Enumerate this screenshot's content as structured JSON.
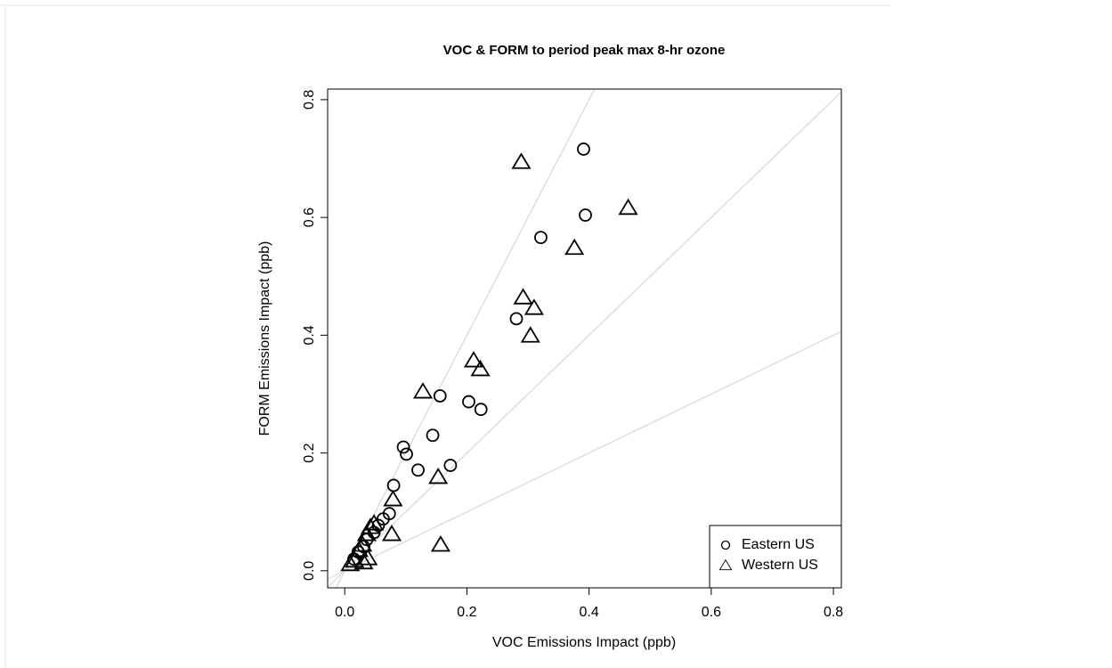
{
  "chart_data": {
    "type": "scatter",
    "title": "VOC & FORM to period peak max 8-hr ozone",
    "x_label": "VOC Emissions Impact (ppb)",
    "y_label": "FORM Emissions Impact (ppb)",
    "xlim": [
      -0.028,
      0.813
    ],
    "ylim": [
      -0.029,
      0.818
    ],
    "xticks": [
      {
        "value": 0,
        "label": "0.0"
      },
      0.2,
      0.4,
      0.6,
      0.8
    ],
    "yticks": [
      {
        "value": 0,
        "label": "0.0"
      },
      0.2,
      0.4,
      0.6,
      0.8
    ],
    "reference_lines": [
      2,
      1,
      0.5
    ],
    "reference_color": "#d9d9d9",
    "legend": "bottomright",
    "series": [
      {
        "name": "Eastern US",
        "marker": "circle",
        "color": "#000000",
        "x": [
          0.391,
          0.394,
          0.321,
          0.281,
          0.156,
          0.203,
          0.223,
          0.144,
          0.096,
          0.101,
          0.12,
          0.173,
          0.08,
          0.073,
          0.063,
          0.055,
          0.048,
          0.036,
          0.031,
          0.022,
          0.015
        ],
        "values": [
          0.716,
          0.604,
          0.566,
          0.428,
          0.297,
          0.287,
          0.274,
          0.23,
          0.21,
          0.198,
          0.171,
          0.179,
          0.145,
          0.097,
          0.088,
          0.077,
          0.065,
          0.053,
          0.041,
          0.032,
          0.02
        ]
      },
      {
        "name": "Western US",
        "marker": "triangle",
        "color": "#000000",
        "x": [
          0.289,
          0.464,
          0.376,
          0.292,
          0.31,
          0.304,
          0.211,
          0.222,
          0.128,
          0.153,
          0.079,
          0.157,
          0.077,
          0.048,
          0.042,
          0.036,
          0.029,
          0.023,
          0.038,
          0.031,
          0.009,
          0.016
        ],
        "values": [
          0.694,
          0.616,
          0.548,
          0.464,
          0.446,
          0.399,
          0.357,
          0.342,
          0.304,
          0.159,
          0.121,
          0.044,
          0.062,
          0.08,
          0.074,
          0.062,
          0.044,
          0.035,
          0.021,
          0.014,
          0.011,
          0.017
        ]
      }
    ]
  }
}
